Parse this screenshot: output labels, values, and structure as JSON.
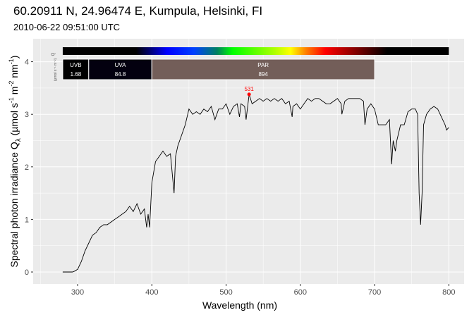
{
  "title": "60.20911  N, 24.96474  E, Kumpula, Helsinki, FI",
  "subtitle": "2010-06-22 09:51:00 UTC",
  "chart_data": {
    "type": "line",
    "title": "60.20911  N, 24.96474  E, Kumpula, Helsinki, FI",
    "subtitle": "2010-06-22 09:51:00 UTC",
    "xlabel": "Wavelength (nm)",
    "ylabel_parts": {
      "main": "Spectral photon irradiance  Q",
      "sub": "λ",
      "units": "(µmol s",
      "e1": "-1",
      "m": " m",
      "e2": "-2",
      "nm": " nm",
      "e3": "-1",
      "close": ")"
    },
    "xlim": [
      250,
      820
    ],
    "ylim": [
      -0.2,
      4.45
    ],
    "xticks": [
      300,
      400,
      500,
      600,
      700,
      800
    ],
    "yticks": [
      0,
      1,
      2,
      3,
      4
    ],
    "grid": true,
    "peak": {
      "x": 531,
      "y": 3.38,
      "label": "531",
      "color": "#ff0000"
    },
    "band_axis_label": {
      "q": "Q",
      "units": "(µmol s⁻¹ m⁻²)"
    },
    "bands": [
      {
        "name": "UVB",
        "value": "1.68",
        "from": 280,
        "to": 315,
        "color": "#000000"
      },
      {
        "name": "UVA",
        "value": "84.8",
        "from": 315,
        "to": 400,
        "color": "#03000f"
      },
      {
        "name": "PAR",
        "value": "894",
        "from": 400,
        "to": 700,
        "color": "#735e59"
      }
    ],
    "x": [
      280,
      293,
      295,
      300,
      305,
      310,
      315,
      320,
      325,
      330,
      335,
      340,
      345,
      350,
      355,
      360,
      365,
      370,
      375,
      380,
      385,
      390,
      393,
      395,
      397,
      400,
      405,
      410,
      415,
      420,
      425,
      430,
      432,
      435,
      440,
      445,
      450,
      455,
      460,
      465,
      470,
      475,
      480,
      485,
      490,
      495,
      500,
      505,
      510,
      515,
      518,
      520,
      525,
      527,
      531,
      535,
      540,
      545,
      550,
      555,
      560,
      565,
      570,
      575,
      580,
      585,
      589,
      590,
      595,
      600,
      605,
      610,
      615,
      620,
      625,
      630,
      635,
      640,
      645,
      650,
      655,
      656,
      660,
      665,
      670,
      675,
      680,
      685,
      687,
      690,
      695,
      700,
      705,
      710,
      715,
      720,
      723,
      725,
      728,
      730,
      735,
      740,
      745,
      750,
      755,
      758,
      760,
      762,
      764,
      766,
      770,
      775,
      780,
      785,
      790,
      795,
      797,
      800
    ],
    "y": [
      0,
      0,
      0.01,
      0.05,
      0.2,
      0.4,
      0.55,
      0.7,
      0.75,
      0.85,
      0.9,
      0.9,
      0.95,
      1.0,
      1.05,
      1.1,
      1.15,
      1.25,
      1.15,
      1.3,
      1.1,
      1.2,
      0.85,
      1.1,
      0.85,
      1.7,
      2.1,
      2.2,
      2.3,
      2.2,
      2.25,
      1.5,
      2.2,
      2.4,
      2.6,
      2.8,
      3.1,
      3.0,
      3.05,
      3.0,
      3.1,
      3.05,
      3.15,
      2.9,
      3.1,
      3.1,
      3.2,
      3.0,
      3.15,
      3.2,
      2.95,
      3.2,
      3.15,
      2.9,
      3.38,
      3.2,
      3.25,
      3.3,
      3.25,
      3.3,
      3.25,
      3.3,
      3.25,
      3.3,
      3.2,
      3.25,
      2.95,
      3.15,
      3.2,
      3.1,
      3.2,
      3.3,
      3.25,
      3.3,
      3.3,
      3.25,
      3.2,
      3.2,
      3.25,
      3.3,
      3.2,
      3.0,
      3.25,
      3.3,
      3.3,
      3.3,
      3.3,
      3.25,
      2.8,
      3.1,
      3.2,
      3.1,
      2.8,
      2.8,
      2.8,
      2.9,
      2.05,
      2.5,
      2.3,
      2.5,
      2.8,
      2.8,
      3.05,
      3.1,
      3.1,
      3.0,
      1.5,
      0.9,
      1.5,
      2.8,
      3.0,
      3.1,
      3.15,
      3.1,
      2.95,
      2.8,
      2.7,
      2.75
    ]
  }
}
